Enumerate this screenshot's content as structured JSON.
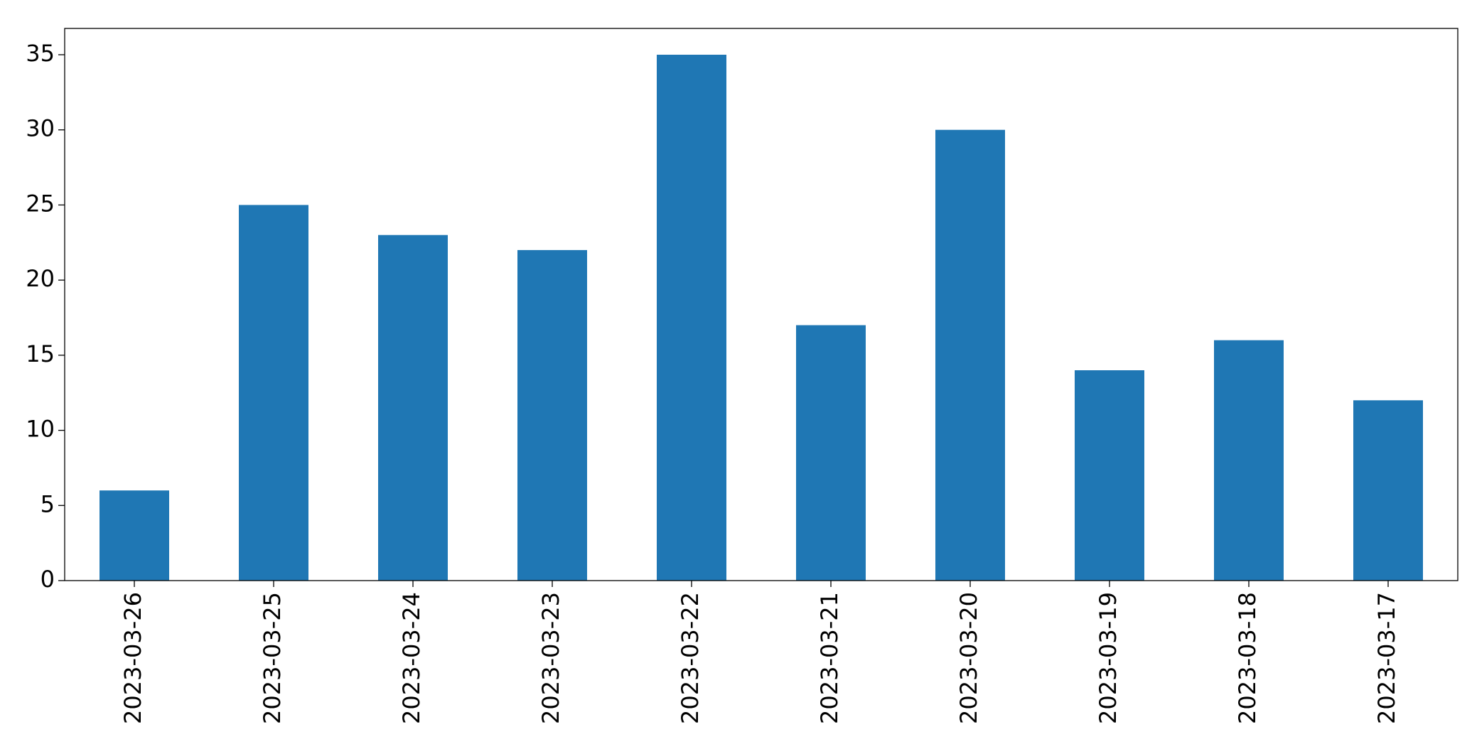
{
  "chart_data": {
    "type": "bar",
    "categories": [
      "2023-03-26",
      "2023-03-25",
      "2023-03-24",
      "2023-03-23",
      "2023-03-22",
      "2023-03-21",
      "2023-03-20",
      "2023-03-19",
      "2023-03-18",
      "2023-03-17"
    ],
    "values": [
      6,
      25,
      23,
      22,
      35,
      17,
      30,
      14,
      16,
      12
    ],
    "color": "#1f77b4",
    "ylim": [
      0,
      36.75
    ],
    "yticks": [
      0,
      5,
      10,
      15,
      20,
      25,
      30,
      35
    ],
    "grid": false
  }
}
